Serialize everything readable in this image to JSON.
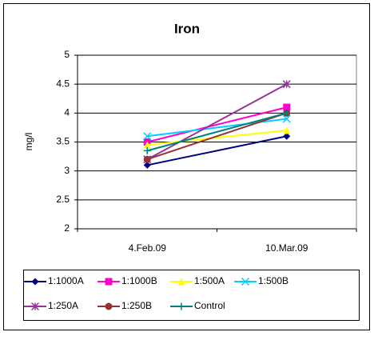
{
  "chart_data": {
    "type": "line",
    "title": "Iron",
    "y_label": "mg/l",
    "categories": [
      "4.Feb.09",
      "10.Mar.09"
    ],
    "series": [
      {
        "name": "1:1000A",
        "color": "#000080",
        "marker": "diamond",
        "values": [
          3.1,
          3.6
        ]
      },
      {
        "name": "1:1000B",
        "color": "#ff00cc",
        "marker": "square",
        "values": [
          3.5,
          4.1
        ]
      },
      {
        "name": "1:500A",
        "color": "#ffff00",
        "marker": "triangle",
        "values": [
          3.45,
          3.7
        ]
      },
      {
        "name": "1:500B",
        "color": "#00ccff",
        "marker": "x",
        "values": [
          3.6,
          3.9
        ]
      },
      {
        "name": "1:250A",
        "color": "#993399",
        "marker": "star",
        "values": [
          3.2,
          4.5
        ]
      },
      {
        "name": "1:250B",
        "color": "#993333",
        "marker": "circle",
        "values": [
          3.2,
          4.0
        ]
      },
      {
        "name": "Control",
        "color": "#008080",
        "marker": "plus",
        "values": [
          3.35,
          4.0
        ]
      }
    ],
    "ylim": [
      2,
      5
    ],
    "yticks": [
      2,
      2.5,
      3,
      3.5,
      4,
      4.5,
      5
    ],
    "grid": true,
    "legend": "bottom"
  }
}
